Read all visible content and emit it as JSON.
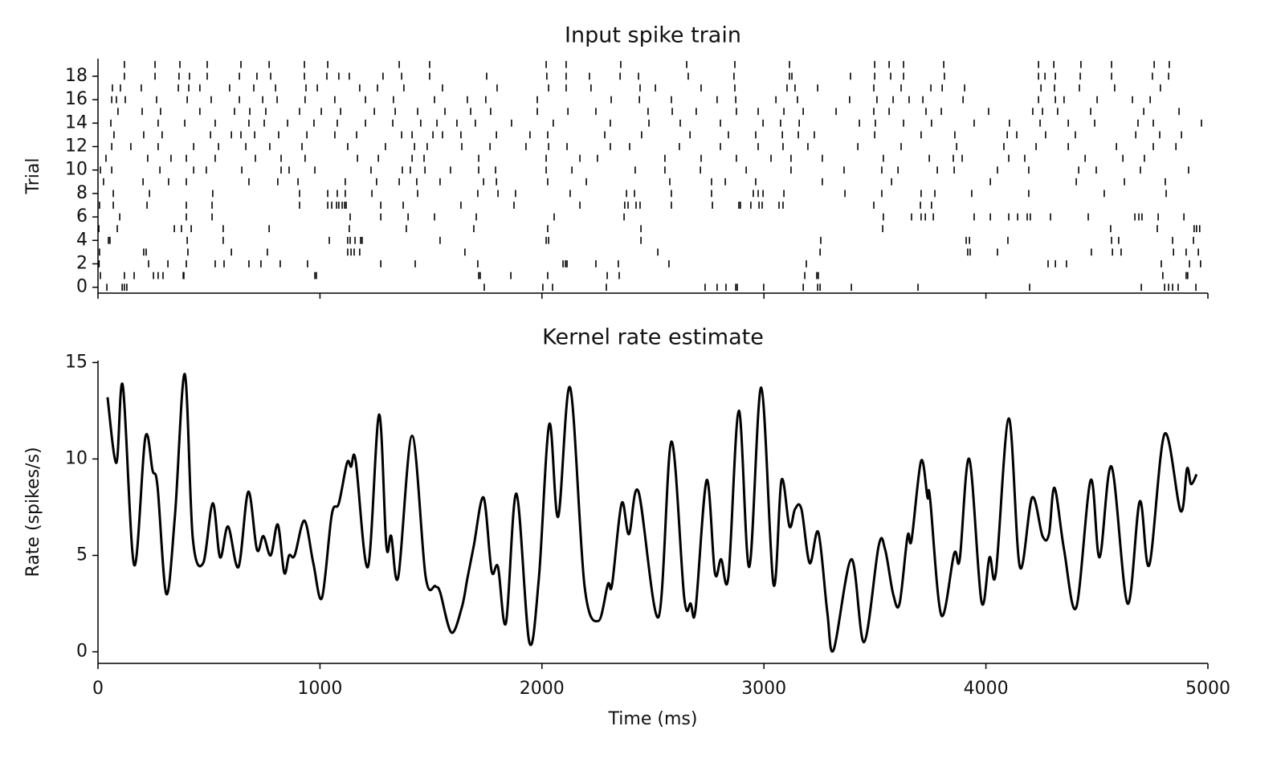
{
  "chart_data": [
    {
      "type": "raster",
      "title": "Input spike train",
      "ylabel": "Trial",
      "color": "#000000",
      "xlim": [
        0,
        5000
      ],
      "xticks": [
        0,
        1000,
        2000,
        3000,
        4000,
        5000
      ],
      "xtick_labels": false,
      "ylim": [
        -0.5,
        19.5
      ],
      "yticks": [
        0,
        2,
        4,
        6,
        8,
        10,
        12,
        14,
        16,
        18
      ],
      "trials": [
        [
          40,
          109,
          119,
          130,
          1740,
          2004,
          2048,
          2290,
          2735,
          2789,
          2829,
          2873,
          2880,
          2999,
          3177,
          3242,
          3253,
          3394,
          3694,
          4197,
          4700,
          4805,
          4823,
          4841,
          4866,
          4946
        ],
        [
          11,
          119,
          163,
          250,
          271,
          293,
          384,
          387,
          977,
          984,
          1715,
          1722,
          1860,
          2026,
          2294,
          2348,
          3184,
          3238,
          3245,
          4797,
          4902,
          4909
        ],
        [
          5,
          228,
          315,
          398,
          528,
          568,
          680,
          734,
          821,
          944,
          1274,
          1429,
          1711,
          2095,
          2106,
          2113,
          2243,
          2344,
          2572,
          3191,
          4280,
          4313,
          4363,
          4790,
          4917,
          4967
        ],
        [
          7,
          206,
          217,
          405,
          601,
          763,
          1125,
          1140,
          1154,
          1179,
          1653,
          2522,
          3253,
          3918,
          3929,
          4052,
          4475,
          4570,
          4609,
          4845,
          4902,
          4957
        ],
        [
          47,
          54,
          402,
          564,
          1042,
          1125,
          1136,
          1158,
          1183,
          1190,
          1541,
          2019,
          2030,
          2446,
          3256,
          3911,
          3926,
          4099,
          4566,
          4598,
          4841,
          4935
        ],
        [
          4,
          87,
          344,
          376,
          420,
          564,
          771,
          1132,
          1389,
          1693,
          2026,
          2446,
          3535,
          4562,
          4772,
          4938,
          4949,
          4963
        ],
        [
          98,
          398,
          514,
          1136,
          1274,
          1397,
          1516,
          1704,
          2055,
          2370,
          3538,
          3665,
          3708,
          3727,
          3763,
          3947,
          4020,
          4103,
          4143,
          4186,
          4200,
          4291,
          4461,
          4671,
          4689,
          4703,
          4776,
          4892
        ],
        [
          7,
          69,
          221,
          398,
          514,
          908,
          1035,
          1053,
          1075,
          1085,
          1100,
          1111,
          1118,
          1274,
          1375,
          1635,
          1874,
          2171,
          2373,
          2388,
          2424,
          2442,
          2583,
          2768,
          2887,
          2894,
          2941,
          2978,
          2992,
          3068,
          3086,
          3495,
          3705,
          3755
        ],
        [
          69,
          232,
          517,
          908,
          1035,
          1078,
          1114,
          1234,
          1440,
          1711,
          1802,
          1881,
          2127,
          2381,
          2417,
          2583,
          2764,
          2952,
          2974,
          2996,
          3090,
          3365,
          3531,
          3708,
          3770,
          3936,
          4193,
          4533,
          4812
        ],
        [
          25,
          203,
          318,
          398,
          680,
          810,
          901,
          1114,
          1255,
          1357,
          1436,
          1541,
          1737,
          1795,
          2026,
          2200,
          2576,
          2764,
          2826,
          2963,
          3263,
          3575,
          4020,
          4407,
          4624,
          4808
        ],
        [
          11,
          62,
          279,
          431,
          488,
          648,
          825,
          861,
          977,
          1230,
          1371,
          1407,
          1473,
          1588,
          1715,
          1791,
          2019,
          2135,
          2420,
          2554,
          2714,
          2920,
          3122,
          3361,
          3531,
          3604,
          3781,
          3857,
          4052,
          4193,
          4418,
          4497,
          4696,
          4913
        ],
        [
          36,
          224,
          329,
          398,
          528,
          709,
          825,
          933,
          1169,
          1263,
          1415,
          1469,
          1715,
          2019,
          2171,
          2250,
          2554,
          2717,
          2876,
          3032,
          3122,
          3263,
          3538,
          3745,
          3853,
          3893,
          4103,
          4175,
          4447,
          4617,
          4714
        ],
        [
          62,
          148,
          271,
          431,
          543,
          666,
          774,
          919,
          1125,
          1295,
          1426,
          1483,
          1639,
          1766,
          1928,
          2030,
          2113,
          2308,
          2395,
          2619,
          2804,
          2974,
          3086,
          3198,
          3423,
          3618,
          3868,
          4081,
          4226,
          4371,
          4588,
          4754,
          4856
        ],
        [
          72,
          206,
          289,
          507,
          601,
          644,
          706,
          814,
          941,
          1067,
          1165,
          1368,
          1415,
          1509,
          1552,
          1635,
          1795,
          1946,
          2026,
          2283,
          2449,
          2667,
          2840,
          2963,
          3083,
          3155,
          3227,
          3499,
          3708,
          3860,
          4096,
          4139,
          4269,
          4403,
          4675,
          4783,
          4881
        ],
        [
          58,
          271,
          391,
          528,
          680,
          749,
          854,
          973,
          1078,
          1205,
          1328,
          1454,
          1527,
          1617,
          1700,
          1863,
          2051,
          2308,
          2482,
          2623,
          2804,
          2996,
          3075,
          3159,
          3430,
          3502,
          3629,
          3755,
          3947,
          4106,
          4244,
          4371,
          4490,
          4685,
          4754,
          4971
        ],
        [
          90,
          199,
          282,
          459,
          615,
          684,
          756,
          908,
          1006,
          1093,
          1245,
          1339,
          1440,
          1563,
          1679,
          1769,
          1979,
          2117,
          2243,
          2478,
          2587,
          2695,
          2876,
          2974,
          3090,
          3177,
          3325,
          3495,
          3564,
          3730,
          3799,
          4012,
          4211,
          4255,
          4323,
          4472,
          4711,
          4870
        ],
        [
          62,
          83,
          123,
          264,
          402,
          510,
          637,
          742,
          807,
          933,
          1067,
          1205,
          1331,
          1516,
          1664,
          1747,
          1979,
          2312,
          2439,
          2583,
          2789,
          2873,
          3054,
          3151,
          3386,
          3509,
          3582,
          3654,
          3716,
          3897,
          4237,
          4313,
          4352,
          4501,
          4660,
          4740
        ],
        [
          65,
          101,
          195,
          362,
          409,
          459,
          593,
          702,
          800,
          937,
          988,
          1179,
          1259,
          1378,
          1552,
          1798,
          2030,
          2109,
          2221,
          2442,
          2511,
          2717,
          2869,
          3104,
          3140,
          3242,
          3495,
          3618,
          3752,
          3803,
          3904,
          4248,
          4309,
          4421,
          4580,
          4786
        ],
        [
          119,
          257,
          365,
          412,
          492,
          637,
          716,
          778,
          930,
          1031,
          1085,
          1132,
          1284,
          1368,
          1494,
          1751,
          2022,
          2109,
          2214,
          2352,
          2435,
          2659,
          2865,
          3115,
          3126,
          3390,
          3499,
          3571,
          3629,
          3813,
          4237,
          4266,
          4313,
          4425,
          4566,
          4750,
          4823
        ],
        [
          119,
          257,
          369,
          492,
          644,
          771,
          930,
          1035,
          1357,
          1494,
          2019,
          2109,
          2355,
          2652,
          2869,
          3115,
          3499,
          3564,
          3629,
          3810,
          4237,
          4306,
          4428,
          4566,
          4758,
          4826
        ]
      ]
    },
    {
      "type": "line",
      "title": "Kernel rate estimate",
      "xlabel": "Time (ms)",
      "ylabel": "Rate (spikes/s)",
      "color": "#000000",
      "xlim": [
        0,
        5000
      ],
      "xticks": [
        0,
        1000,
        2000,
        3000,
        4000,
        5000
      ],
      "ylim": [
        -0.6,
        15.1
      ],
      "yticks": [
        0,
        5,
        10,
        15
      ],
      "x": [
        43,
        83,
        112,
        163,
        213,
        246,
        268,
        308,
        347,
        391,
        427,
        474,
        517,
        550,
        586,
        633,
        677,
        716,
        745,
        778,
        810,
        839,
        861,
        886,
        930,
        970,
        1009,
        1053,
        1085,
        1122,
        1140,
        1161,
        1216,
        1266,
        1299,
        1321,
        1353,
        1415,
        1476,
        1520,
        1541,
        1592,
        1639,
        1664,
        1693,
        1737,
        1773,
        1802,
        1838,
        1885,
        1943,
        1986,
        2033,
        2073,
        2127,
        2192,
        2254,
        2297,
        2316,
        2359,
        2392,
        2435,
        2525,
        2583,
        2641,
        2670,
        2692,
        2742,
        2779,
        2807,
        2840,
        2887,
        2934,
        2988,
        3043,
        3079,
        3115,
        3140,
        3169,
        3206,
        3245,
        3285,
        3314,
        3394,
        3451,
        3517,
        3546,
        3582,
        3611,
        3647,
        3665,
        3708,
        3737,
        3748,
        3799,
        3857,
        3882,
        3925,
        3980,
        4016,
        4045,
        4103,
        4153,
        4208,
        4255,
        4284,
        4309,
        4352,
        4407,
        4472,
        4512,
        4566,
        4638,
        4693,
        4736,
        4805,
        4877,
        4906,
        4924,
        4949
      ],
      "values": [
        13.2,
        9.8,
        13.8,
        4.5,
        11.1,
        9.4,
        8.6,
        3.0,
        7.1,
        14.4,
        5.9,
        4.6,
        7.7,
        4.9,
        6.5,
        4.4,
        8.3,
        5.3,
        6.0,
        5.0,
        6.6,
        4.1,
        5.0,
        5.0,
        6.8,
        4.6,
        2.8,
        7.1,
        7.7,
        9.8,
        9.6,
        9.9,
        4.4,
        12.3,
        5.5,
        6.0,
        3.9,
        11.2,
        3.9,
        3.4,
        3.1,
        1.0,
        2.3,
        3.8,
        5.5,
        8.0,
        4.2,
        4.4,
        1.5,
        8.2,
        0.5,
        3.8,
        11.8,
        7.0,
        13.7,
        3.4,
        1.6,
        3.5,
        3.5,
        7.7,
        6.1,
        8.3,
        1.8,
        10.9,
        2.8,
        2.5,
        2.2,
        8.9,
        4.1,
        4.8,
        3.9,
        12.5,
        4.4,
        13.7,
        3.5,
        8.9,
        6.5,
        7.4,
        7.4,
        4.6,
        6.2,
        2.1,
        0.1,
        4.8,
        0.5,
        5.5,
        5.3,
        3.0,
        2.5,
        6.0,
        5.8,
        9.9,
        8.0,
        8.0,
        1.9,
        5.1,
        4.8,
        10.0,
        2.6,
        4.9,
        4.1,
        12.1,
        4.4,
        8.0,
        6.0,
        6.1,
        8.5,
        5.3,
        2.3,
        8.9,
        4.9,
        9.6,
        2.5,
        7.8,
        4.5,
        11.3,
        7.3,
        9.5,
        8.7,
        9.2
      ]
    }
  ]
}
